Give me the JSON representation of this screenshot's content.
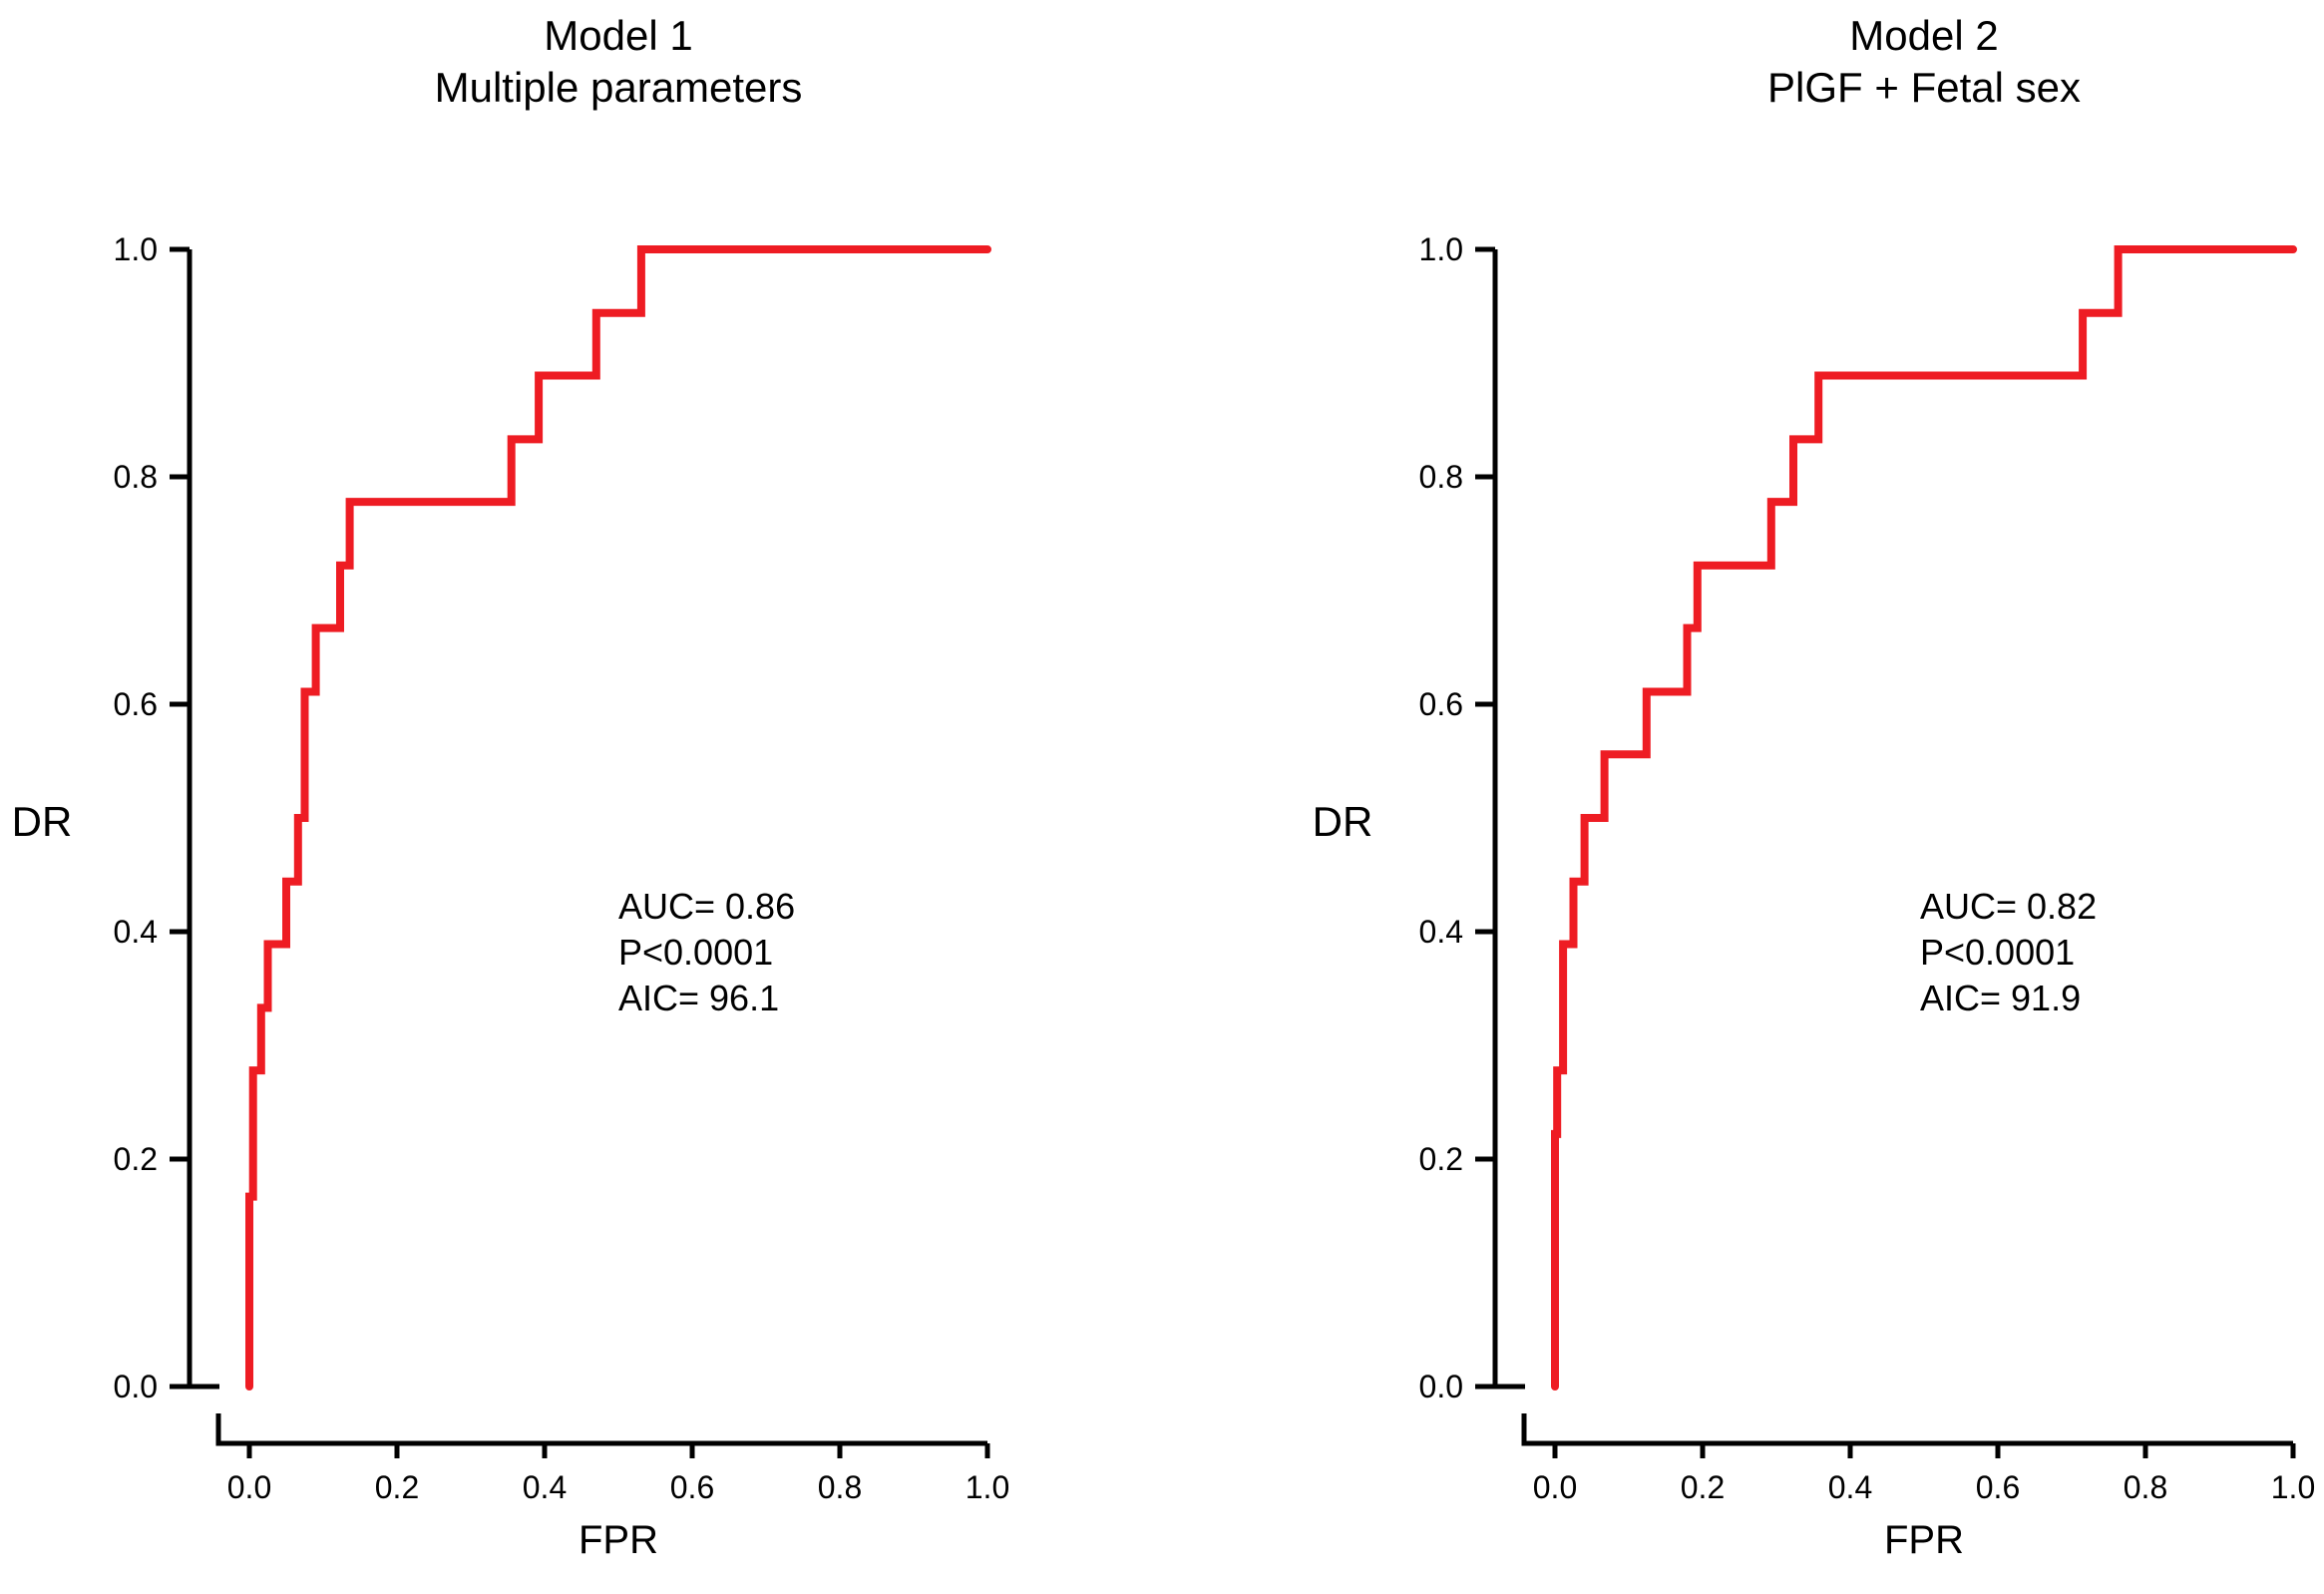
{
  "figure": {
    "background_color": "#ffffff",
    "curve_color": "#ee1c23",
    "axis_color": "#000000",
    "text_color": "#000000"
  },
  "panels": [
    {
      "title_line1": "Model 1",
      "title_line2": "Multiple parameters",
      "y_axis_label": "DR",
      "x_axis_label": "FPR",
      "annotation": {
        "auc": "AUC= 0.86",
        "p": "P<0.0001",
        "aic": "AIC= 96.1"
      }
    },
    {
      "title_line1": "Model 2",
      "title_line2": "PlGF + Fetal sex",
      "y_axis_label": "DR",
      "x_axis_label": "FPR",
      "annotation": {
        "auc": "AUC= 0.82",
        "p": "P<0.0001",
        "aic": "AIC= 91.9"
      }
    }
  ],
  "chart_data": [
    {
      "type": "line",
      "subtype": "roc-step-curve",
      "title": "Model 1 — Multiple parameters",
      "xlabel": "FPR",
      "ylabel": "DR",
      "xlim": [
        0.0,
        1.0
      ],
      "ylim": [
        0.0,
        1.0
      ],
      "x_ticks": [
        0.0,
        0.2,
        0.4,
        0.6,
        0.8,
        1.0
      ],
      "x_tick_labels": [
        "0.0",
        "0.2",
        "0.4",
        "0.6",
        "0.8",
        "1.0"
      ],
      "y_ticks": [
        0.0,
        0.2,
        0.4,
        0.6,
        0.8,
        1.0
      ],
      "y_tick_labels": [
        "0.0",
        "0.2",
        "0.4",
        "0.6",
        "0.8",
        "1.0"
      ],
      "grid": false,
      "legend": false,
      "auc": 0.86,
      "p_value": "<0.0001",
      "aic": 96.1,
      "points": [
        [
          0.0,
          0.0
        ],
        [
          0.0,
          0.167
        ],
        [
          0.005,
          0.167
        ],
        [
          0.005,
          0.278
        ],
        [
          0.016,
          0.278
        ],
        [
          0.016,
          0.333
        ],
        [
          0.025,
          0.333
        ],
        [
          0.025,
          0.389
        ],
        [
          0.05,
          0.389
        ],
        [
          0.05,
          0.444
        ],
        [
          0.066,
          0.444
        ],
        [
          0.066,
          0.5
        ],
        [
          0.075,
          0.5
        ],
        [
          0.075,
          0.611
        ],
        [
          0.09,
          0.611
        ],
        [
          0.09,
          0.667
        ],
        [
          0.123,
          0.667
        ],
        [
          0.123,
          0.722
        ],
        [
          0.136,
          0.722
        ],
        [
          0.136,
          0.778
        ],
        [
          0.355,
          0.778
        ],
        [
          0.355,
          0.833
        ],
        [
          0.392,
          0.833
        ],
        [
          0.392,
          0.889
        ],
        [
          0.47,
          0.889
        ],
        [
          0.47,
          0.944
        ],
        [
          0.531,
          0.944
        ],
        [
          0.531,
          1.0
        ],
        [
          1.0,
          1.0
        ]
      ]
    },
    {
      "type": "line",
      "subtype": "roc-step-curve",
      "title": "Model 2 — PlGF + Fetal sex",
      "xlabel": "FPR",
      "ylabel": "DR",
      "xlim": [
        0.0,
        1.0
      ],
      "ylim": [
        0.0,
        1.0
      ],
      "x_ticks": [
        0.0,
        0.2,
        0.4,
        0.6,
        0.8,
        1.0
      ],
      "x_tick_labels": [
        "0.0",
        "0.2",
        "0.4",
        "0.6",
        "0.8",
        "1.0"
      ],
      "y_ticks": [
        0.0,
        0.2,
        0.4,
        0.6,
        0.8,
        1.0
      ],
      "y_tick_labels": [
        "0.0",
        "0.2",
        "0.4",
        "0.6",
        "0.8",
        "1.0"
      ],
      "grid": false,
      "legend": false,
      "auc": 0.82,
      "p_value": "<0.0001",
      "aic": 91.9,
      "points": [
        [
          0.0,
          0.0
        ],
        [
          0.0,
          0.222
        ],
        [
          0.003,
          0.222
        ],
        [
          0.003,
          0.278
        ],
        [
          0.011,
          0.278
        ],
        [
          0.011,
          0.389
        ],
        [
          0.025,
          0.389
        ],
        [
          0.025,
          0.444
        ],
        [
          0.04,
          0.444
        ],
        [
          0.04,
          0.5
        ],
        [
          0.067,
          0.5
        ],
        [
          0.067,
          0.556
        ],
        [
          0.124,
          0.556
        ],
        [
          0.124,
          0.611
        ],
        [
          0.179,
          0.611
        ],
        [
          0.179,
          0.667
        ],
        [
          0.193,
          0.667
        ],
        [
          0.193,
          0.722
        ],
        [
          0.293,
          0.722
        ],
        [
          0.293,
          0.778
        ],
        [
          0.323,
          0.778
        ],
        [
          0.323,
          0.833
        ],
        [
          0.357,
          0.833
        ],
        [
          0.357,
          0.889
        ],
        [
          0.715,
          0.889
        ],
        [
          0.715,
          0.944
        ],
        [
          0.763,
          0.944
        ],
        [
          0.763,
          1.0
        ],
        [
          1.0,
          1.0
        ]
      ]
    }
  ]
}
